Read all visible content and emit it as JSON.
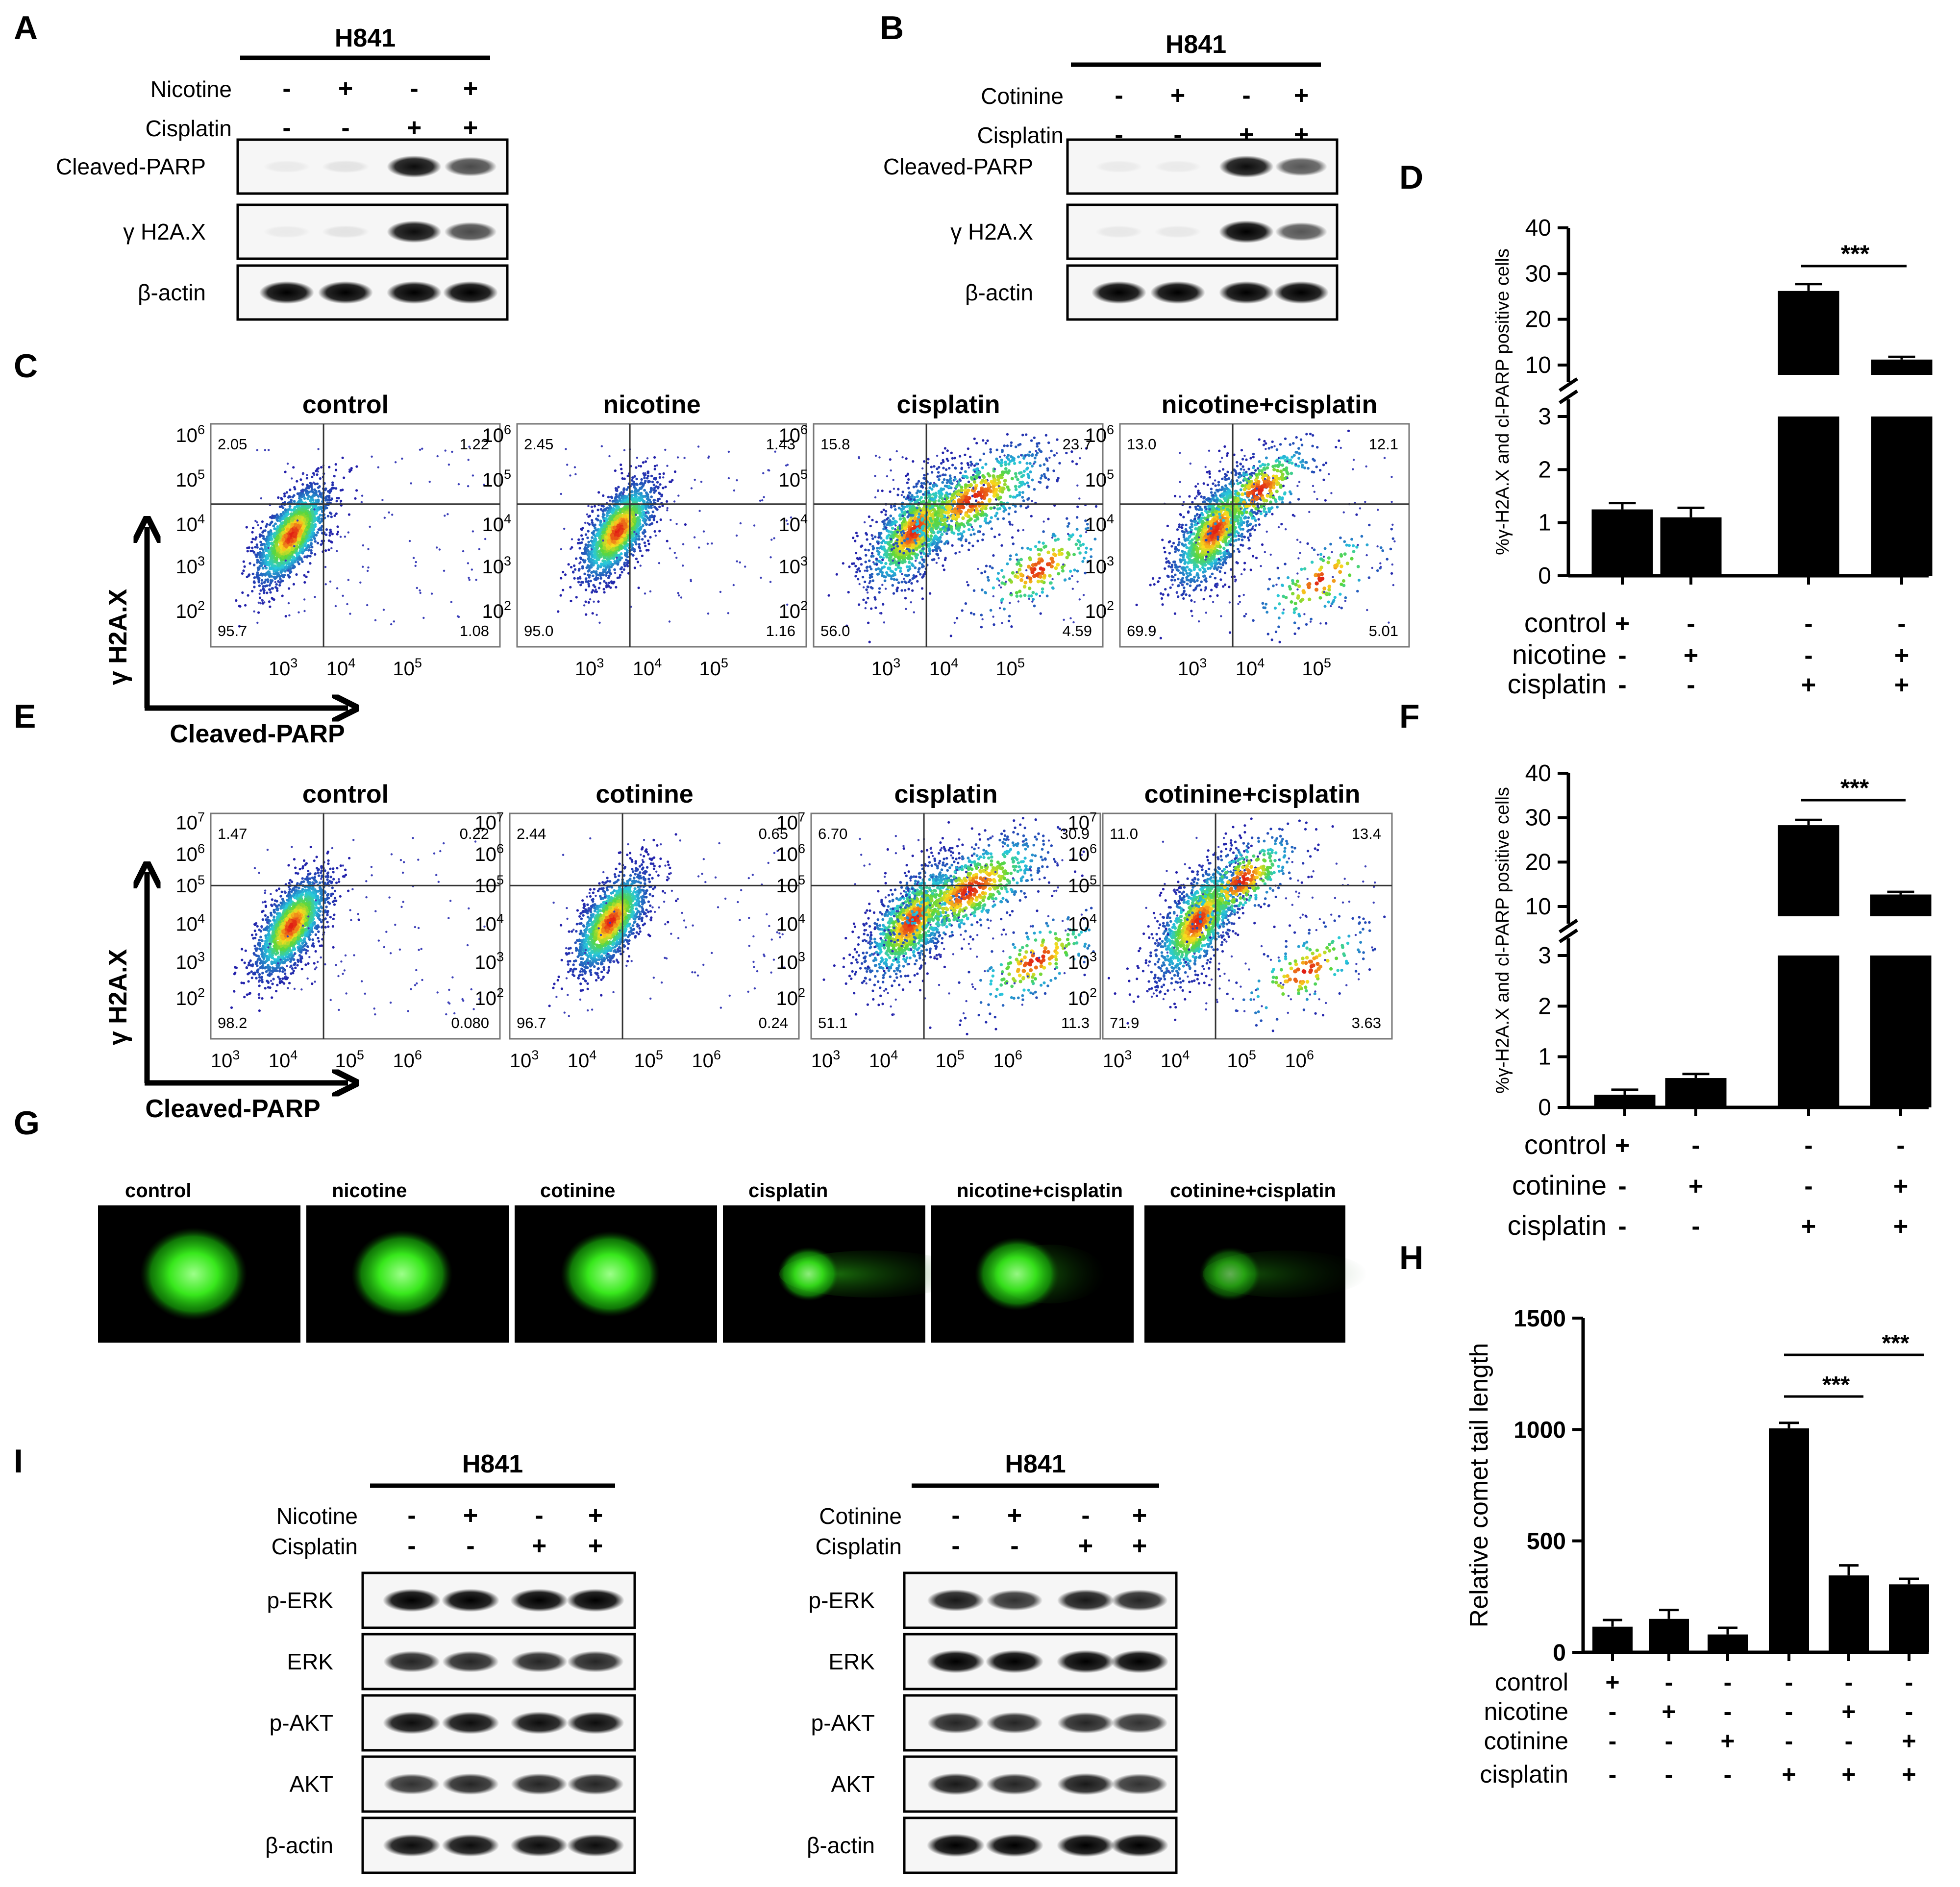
{
  "panels": {
    "A": "A",
    "B": "B",
    "C": "C",
    "D": "D",
    "E": "E",
    "F": "F",
    "G": "G",
    "H": "H",
    "I": "I"
  },
  "sign": {
    "plus": "+",
    "minus": "-"
  },
  "cell_line": "H841",
  "blot_A": {
    "treatments": [
      {
        "name": "Nicotine",
        "signs": [
          "-",
          "+",
          "-",
          "+"
        ]
      },
      {
        "name": "Cisplatin",
        "signs": [
          "-",
          "-",
          "+",
          "+"
        ]
      }
    ],
    "rows": [
      {
        "label": "Cleaved-PARP",
        "bands": [
          0.05,
          0.08,
          0.95,
          0.7
        ]
      },
      {
        "label": "γ H2A.X",
        "bands": [
          0.05,
          0.08,
          0.95,
          0.7
        ]
      },
      {
        "label": "β-actin",
        "bands": [
          1,
          1,
          1,
          1
        ]
      }
    ]
  },
  "blot_B": {
    "treatments": [
      {
        "name": "Cotinine",
        "signs": [
          "-",
          "+",
          "-",
          "+"
        ]
      },
      {
        "name": "Cisplatin",
        "signs": [
          "-",
          "-",
          "+",
          "+"
        ]
      }
    ],
    "rows": [
      {
        "label": "Cleaved-PARP",
        "bands": [
          0.05,
          0.05,
          0.95,
          0.65
        ]
      },
      {
        "label": "γ H2A.X",
        "bands": [
          0.06,
          0.06,
          1,
          0.65
        ]
      },
      {
        "label": "β-actin",
        "bands": [
          1,
          1,
          1,
          1
        ]
      }
    ]
  },
  "flow_C": {
    "xlabel": "Cleaved-PARP",
    "ylabel": "γ H2A.X",
    "xticks": [
      {
        "b": "10",
        "e": "3"
      },
      {
        "b": "10",
        "e": "4"
      },
      {
        "b": "10",
        "e": "5"
      }
    ],
    "yticks": [
      {
        "b": "10",
        "e": "6"
      },
      {
        "b": "10",
        "e": "5"
      },
      {
        "b": "10",
        "e": "4"
      },
      {
        "b": "10",
        "e": "3"
      },
      {
        "b": "10",
        "e": "2"
      }
    ],
    "plots": [
      {
        "title": "control",
        "ul": "2.05",
        "ur": "1.22",
        "ll": "95.7",
        "lr": "1.08"
      },
      {
        "title": "nicotine",
        "ul": "2.45",
        "ur": "1.43",
        "ll": "95.0",
        "lr": "1.16"
      },
      {
        "title": "cisplatin",
        "ul": "15.8",
        "ur": "23.7",
        "ll": "56.0",
        "lr": "4.59"
      },
      {
        "title": "nicotine+cisplatin",
        "ul": "13.0",
        "ur": "12.1",
        "ll": "69.9",
        "lr": "5.01"
      }
    ]
  },
  "flow_E": {
    "xlabel": "Cleaved-PARP",
    "ylabel": "γ H2A.X",
    "xticks": [
      {
        "b": "10",
        "e": "3"
      },
      {
        "b": "10",
        "e": "4"
      },
      {
        "b": "10",
        "e": "5"
      },
      {
        "b": "10",
        "e": "6"
      }
    ],
    "yticks": [
      {
        "b": "10",
        "e": "7"
      },
      {
        "b": "10",
        "e": "6"
      },
      {
        "b": "10",
        "e": "5"
      },
      {
        "b": "10",
        "e": "4"
      },
      {
        "b": "10",
        "e": "3"
      },
      {
        "b": "10",
        "e": "2"
      }
    ],
    "plots": [
      {
        "title": "control",
        "ul": "1.47",
        "ur": "0.22",
        "ll": "98.2",
        "lr": "0.080"
      },
      {
        "title": "cotinine",
        "ul": "2.44",
        "ur": "0.65",
        "ll": "96.7",
        "lr": "0.24"
      },
      {
        "title": "cisplatin",
        "ul": "6.70",
        "ur": "30.9",
        "ll": "51.1",
        "lr": "11.3"
      },
      {
        "title": "cotinine+cisplatin",
        "ul": "11.0",
        "ur": "13.4",
        "ll": "71.9",
        "lr": "3.63"
      }
    ]
  },
  "comet_G": {
    "images": [
      {
        "label": "control",
        "size": 0.95,
        "tail": 0.0,
        "bright": 1.0
      },
      {
        "label": "nicotine",
        "size": 0.9,
        "tail": 0.0,
        "bright": 1.0
      },
      {
        "label": "cotinine",
        "size": 0.88,
        "tail": 0.0,
        "bright": 1.0
      },
      {
        "label": "cisplatin",
        "size": 0.55,
        "tail": 1.0,
        "bright": 0.9
      },
      {
        "label": "nicotine+cisplatin",
        "size": 0.75,
        "tail": 0.3,
        "bright": 0.95
      },
      {
        "label": "cotinine+cisplatin",
        "size": 0.55,
        "tail": 0.8,
        "bright": 0.6
      }
    ]
  },
  "blot_I": [
    {
      "treatments": [
        {
          "name": "Nicotine",
          "signs": [
            "-",
            "+",
            "-",
            "+"
          ]
        },
        {
          "name": "Cisplatin",
          "signs": [
            "-",
            "-",
            "+",
            "+"
          ]
        }
      ],
      "rows": [
        {
          "label": "p-ERK",
          "bands": [
            1,
            1,
            1,
            1
          ]
        },
        {
          "label": "ERK",
          "bands": [
            0.85,
            0.85,
            0.85,
            0.85
          ]
        },
        {
          "label": "p-AKT",
          "bands": [
            0.95,
            0.95,
            0.95,
            0.95
          ]
        },
        {
          "label": "AKT",
          "bands": [
            0.8,
            0.85,
            0.85,
            0.85
          ]
        },
        {
          "label": "β-actin",
          "bands": [
            0.95,
            0.95,
            0.95,
            0.95
          ]
        }
      ]
    },
    {
      "treatments": [
        {
          "name": "Cotinine",
          "signs": [
            "-",
            "+",
            "-",
            "+"
          ]
        },
        {
          "name": "Cisplatin",
          "signs": [
            "-",
            "-",
            "+",
            "+"
          ]
        }
      ],
      "rows": [
        {
          "label": "p-ERK",
          "bands": [
            0.9,
            0.8,
            0.9,
            0.85
          ]
        },
        {
          "label": "ERK",
          "bands": [
            1,
            1,
            1,
            1
          ]
        },
        {
          "label": "p-AKT",
          "bands": [
            0.85,
            0.85,
            0.85,
            0.8
          ]
        },
        {
          "label": "AKT",
          "bands": [
            0.9,
            0.85,
            0.9,
            0.8
          ]
        },
        {
          "label": "β-actin",
          "bands": [
            1,
            1,
            1,
            1
          ]
        }
      ]
    }
  ],
  "chart_data": [
    {
      "panel": "D",
      "type": "bar",
      "ylabel": "%γ-H2A.X and cl-PARP positive cells",
      "broken_axis": true,
      "ylim_lower": [
        0,
        3
      ],
      "ylim_upper": [
        10,
        40
      ],
      "yticks_lower": [
        0,
        1,
        2,
        3
      ],
      "yticks_upper": [
        10,
        20,
        30,
        40
      ],
      "values": [
        1.25,
        1.1,
        26.2,
        11.2
      ],
      "errors": [
        0.12,
        0.18,
        1.5,
        0.6
      ],
      "treatment_rows": [
        {
          "name": "control",
          "signs": [
            "+",
            "-",
            "-",
            "-"
          ]
        },
        {
          "name": "nicotine",
          "signs": [
            "-",
            "+",
            "-",
            "+"
          ]
        },
        {
          "name": "cisplatin",
          "signs": [
            "-",
            "-",
            "+",
            "+"
          ]
        }
      ],
      "significance": [
        {
          "from": 2,
          "to": 3,
          "label": "***"
        }
      ]
    },
    {
      "panel": "F",
      "type": "bar",
      "ylabel": "%γ-H2A.X and cl-PARP positive cells",
      "broken_axis": true,
      "ylim_lower": [
        0,
        3
      ],
      "ylim_upper": [
        10,
        40
      ],
      "yticks_lower": [
        0,
        1,
        2,
        3
      ],
      "yticks_upper": [
        10,
        20,
        30,
        40
      ],
      "values": [
        0.25,
        0.58,
        28.3,
        12.7
      ],
      "errors": [
        0.1,
        0.08,
        1.2,
        0.6
      ],
      "treatment_rows": [
        {
          "name": "control",
          "signs": [
            "+",
            "-",
            "-",
            "-"
          ]
        },
        {
          "name": "cotinine",
          "signs": [
            "-",
            "+",
            "-",
            "+"
          ]
        },
        {
          "name": "cisplatin",
          "signs": [
            "-",
            "-",
            "+",
            "+"
          ]
        }
      ],
      "significance": [
        {
          "from": 2,
          "to": 3,
          "label": "***"
        }
      ]
    },
    {
      "panel": "H",
      "type": "bar",
      "ylabel": "Relative comet tail length",
      "ylim": [
        0,
        1500
      ],
      "yticks": [
        0,
        500,
        1000,
        1500
      ],
      "values": [
        115,
        150,
        80,
        1005,
        345,
        305
      ],
      "errors": [
        30,
        40,
        30,
        25,
        45,
        25
      ],
      "treatment_rows": [
        {
          "name": "control",
          "signs": [
            "+",
            "-",
            "-",
            "-",
            "-",
            "-"
          ]
        },
        {
          "name": "nicotine",
          "signs": [
            "-",
            "+",
            "-",
            "-",
            "+",
            "-"
          ]
        },
        {
          "name": "cotinine",
          "signs": [
            "-",
            "-",
            "+",
            "-",
            "-",
            "+"
          ]
        },
        {
          "name": "cisplatin",
          "signs": [
            "-",
            "-",
            "-",
            "+",
            "+",
            "+"
          ]
        }
      ],
      "significance": [
        {
          "from": 3,
          "to": 4,
          "label": "***"
        },
        {
          "from": 3,
          "to": 5,
          "label": "***"
        }
      ]
    }
  ]
}
